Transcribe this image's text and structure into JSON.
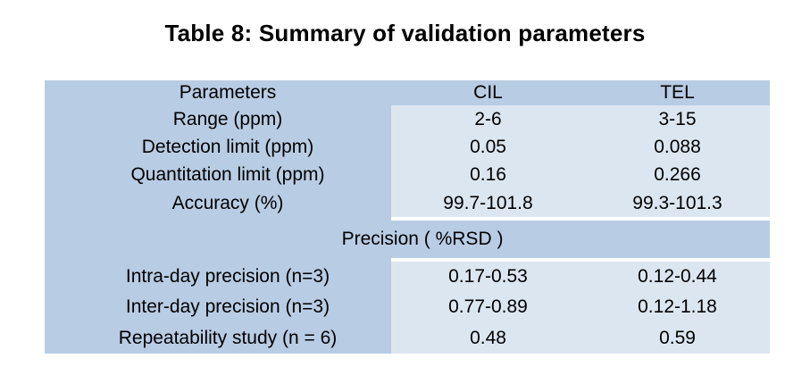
{
  "title": "Table 8: Summary of validation parameters",
  "colors": {
    "cell_dark": "#b8cce4",
    "cell_light": "#dce6f1",
    "page_background": "#ffffff",
    "text": "#000000"
  },
  "table": {
    "header": {
      "parameter": "Parameters",
      "cil": "CIL",
      "tel": "TEL"
    },
    "rows": [
      {
        "parameter": "Range (ppm)",
        "cil": "2-6",
        "tel": "3-15"
      },
      {
        "parameter": "Detection limit (ppm)",
        "cil": "0.05",
        "tel": "0.088"
      },
      {
        "parameter": "Quantitation limit (ppm)",
        "cil": "0.16",
        "tel": "0.266"
      },
      {
        "parameter": "Accuracy (%)",
        "cil": "99.7-101.8",
        "tel": "99.3-101.3"
      }
    ],
    "section_divider": "Precision ( %RSD )",
    "precision_rows": [
      {
        "parameter": "Intra-day precision (n=3)",
        "cil": "0.17-0.53",
        "tel": "0.12-0.44"
      },
      {
        "parameter": "Inter-day precision (n=3)",
        "cil": "0.77-0.89",
        "tel": "0.12-1.18"
      },
      {
        "parameter": "Repeatability study (n = 6)",
        "cil": "0.48",
        "tel": "0.59"
      }
    ]
  }
}
